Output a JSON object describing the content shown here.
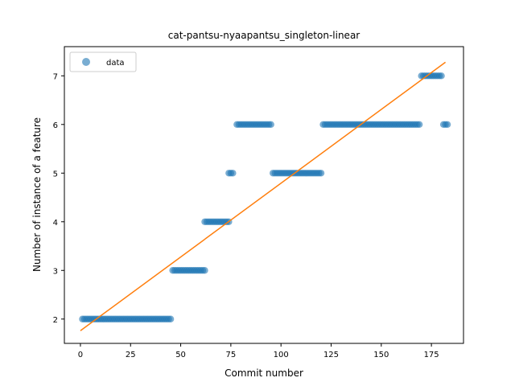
{
  "chart_data": {
    "type": "scatter",
    "title": "cat-pantsu-nyaapantsu_singleton-linear",
    "xlabel": "Commit number",
    "ylabel": "Number of instance of a feature",
    "xlim": [
      -8,
      191
    ],
    "ylim": [
      1.5,
      7.6
    ],
    "xticks": [
      0,
      25,
      50,
      75,
      100,
      125,
      150,
      175
    ],
    "yticks": [
      2,
      3,
      4,
      5,
      6,
      7
    ],
    "legend": {
      "position": "top-left",
      "entries": [
        "data"
      ]
    },
    "colors": {
      "points": "#1f77b4",
      "fit": "#ff7f0e"
    },
    "series": [
      {
        "name": "data",
        "kind": "points",
        "segments": [
          {
            "x_from": 1,
            "x_to": 45,
            "y": 2
          },
          {
            "x_from": 46,
            "x_to": 62,
            "y": 3
          },
          {
            "x_from": 62,
            "x_to": 74,
            "y": 4
          },
          {
            "x_from": 74,
            "x_to": 76,
            "y": 5
          },
          {
            "x_from": 78,
            "x_to": 95,
            "y": 6
          },
          {
            "x_from": 96,
            "x_to": 120,
            "y": 5
          },
          {
            "x_from": 121,
            "x_to": 169,
            "y": 6
          },
          {
            "x_from": 170,
            "x_to": 180,
            "y": 7
          },
          {
            "x_from": 181,
            "x_to": 183,
            "y": 6
          }
        ]
      },
      {
        "name": "",
        "kind": "line",
        "x": [
          0,
          182
        ],
        "y": [
          1.76,
          7.28
        ]
      }
    ]
  }
}
